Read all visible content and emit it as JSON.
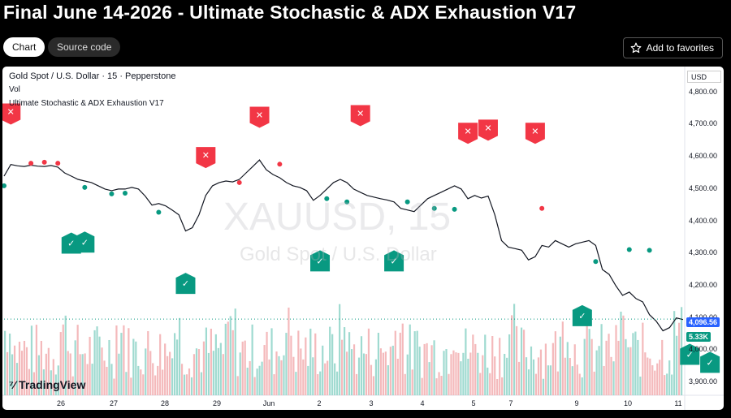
{
  "page": {
    "title": "Final June 14-2026 - Ultimate Stochastic & ADX Exhaustion V17",
    "tabs": [
      "Chart",
      "Source code"
    ],
    "favorites_label": "Add to favorites"
  },
  "chart": {
    "symbol_line": "Gold Spot / U.S. Dollar · 15 · Pepperstone",
    "vol_label": "Vol",
    "indicator_label": "Ultimate Stochastic & ADX Exhaustion V17",
    "watermark_symbol": "XAUUSD, 15",
    "watermark_name": "Gold Spot / U.S. Dollar",
    "currency": "USD",
    "price_badge": "4,096.56",
    "volume_badge": "5.33K",
    "branding": "TradingView",
    "sell_glyph": "✕",
    "buy_glyph": "✓",
    "colors": {
      "sell": "#f23645",
      "buy": "#089981",
      "vol_up": "#7fcdc0",
      "vol_down": "#f0a1a4"
    }
  },
  "chart_data": {
    "type": "line",
    "title": "",
    "ylabel": "USD",
    "ylim": [
      3860,
      4880
    ],
    "yticks": [
      "4,800.00",
      "4,700.00",
      "4,600.00",
      "4,500.00",
      "4,400.00",
      "4,300.00",
      "4,200.00",
      "4,100.00",
      "4,000.00",
      "3,900.00"
    ],
    "xticks": [
      "26",
      "27",
      "28",
      "29",
      "Jun",
      "2",
      "3",
      "4",
      "5",
      "7",
      "9",
      "10",
      "11"
    ],
    "series": [
      {
        "values": [
          4540,
          4576,
          4572,
          4570,
          4574,
          4571,
          4570,
          4573,
          4568,
          4550,
          4540,
          4530,
          4525,
          4520,
          4510,
          4500,
          4495,
          4500,
          4500,
          4505,
          4500,
          4478,
          4450,
          4455,
          4448,
          4435,
          4420,
          4370,
          4380,
          4420,
          4480,
          4510,
          4520,
          4525,
          4522,
          4530,
          4550,
          4570,
          4590,
          4560,
          4545,
          4535,
          4520,
          4510,
          4505,
          4495,
          4465,
          4480,
          4500,
          4520,
          4530,
          4520,
          4500,
          4490,
          4480,
          4475,
          4470,
          4466,
          4460,
          4440,
          4435,
          4430,
          4450,
          4470,
          4480,
          4490,
          4500,
          4510,
          4500,
          4470,
          4480,
          4472,
          4478,
          4420,
          4340,
          4320,
          4315,
          4310,
          4280,
          4290,
          4325,
          4320,
          4340,
          4330,
          4320,
          4330,
          4335,
          4340,
          4325,
          4250,
          4235,
          4200,
          4170,
          4180,
          4160,
          4150,
          4110,
          4090,
          4060,
          4070,
          4100,
          4095
        ]
      }
    ],
    "signals": [
      {
        "kind": "sell",
        "x_index": 1,
        "price": 4700
      },
      {
        "kind": "sell",
        "x_index": 30,
        "price": 4565
      },
      {
        "kind": "sell",
        "x_index": 38,
        "price": 4690
      },
      {
        "kind": "sell",
        "x_index": 53,
        "price": 4695
      },
      {
        "kind": "sell",
        "x_index": 69,
        "price": 4640
      },
      {
        "kind": "sell",
        "x_index": 72,
        "price": 4650
      },
      {
        "kind": "sell",
        "x_index": 79,
        "price": 4640
      },
      {
        "kind": "buy",
        "x_index": 10,
        "price": 4365
      },
      {
        "kind": "buy",
        "x_index": 12,
        "price": 4368
      },
      {
        "kind": "buy",
        "x_index": 27,
        "price": 4240
      },
      {
        "kind": "buy",
        "x_index": 47,
        "price": 4310
      },
      {
        "kind": "buy",
        "x_index": 58,
        "price": 4310
      },
      {
        "kind": "buy",
        "x_index": 86,
        "price": 4140
      },
      {
        "kind": "buy",
        "x_index": 102,
        "price": 4020
      },
      {
        "kind": "buy",
        "x_index": 105,
        "price": 3995
      }
    ],
    "dots": [
      {
        "kind": "sell",
        "x_index": 4,
        "price": 4580
      },
      {
        "kind": "sell",
        "x_index": 6,
        "price": 4583
      },
      {
        "kind": "sell",
        "x_index": 8,
        "price": 4580
      },
      {
        "kind": "sell",
        "x_index": 35,
        "price": 4520
      },
      {
        "kind": "sell",
        "x_index": 41,
        "price": 4577
      },
      {
        "kind": "sell",
        "x_index": 80,
        "price": 4440
      },
      {
        "kind": "buy",
        "x_index": 0,
        "price": 4510
      },
      {
        "kind": "buy",
        "x_index": 12,
        "price": 4505
      },
      {
        "kind": "buy",
        "x_index": 16,
        "price": 4485
      },
      {
        "kind": "buy",
        "x_index": 18,
        "price": 4487
      },
      {
        "kind": "buy",
        "x_index": 23,
        "price": 4428
      },
      {
        "kind": "buy",
        "x_index": 48,
        "price": 4470
      },
      {
        "kind": "buy",
        "x_index": 51,
        "price": 4460
      },
      {
        "kind": "buy",
        "x_index": 60,
        "price": 4460
      },
      {
        "kind": "buy",
        "x_index": 64,
        "price": 4440
      },
      {
        "kind": "buy",
        "x_index": 67,
        "price": 4437
      },
      {
        "kind": "buy",
        "x_index": 88,
        "price": 4275
      },
      {
        "kind": "buy",
        "x_index": 93,
        "price": 4312
      },
      {
        "kind": "buy",
        "x_index": 96,
        "price": 4310
      },
      {
        "kind": "buy",
        "x_index": 110,
        "price": 4060
      }
    ],
    "last_price": 4096.56
  }
}
